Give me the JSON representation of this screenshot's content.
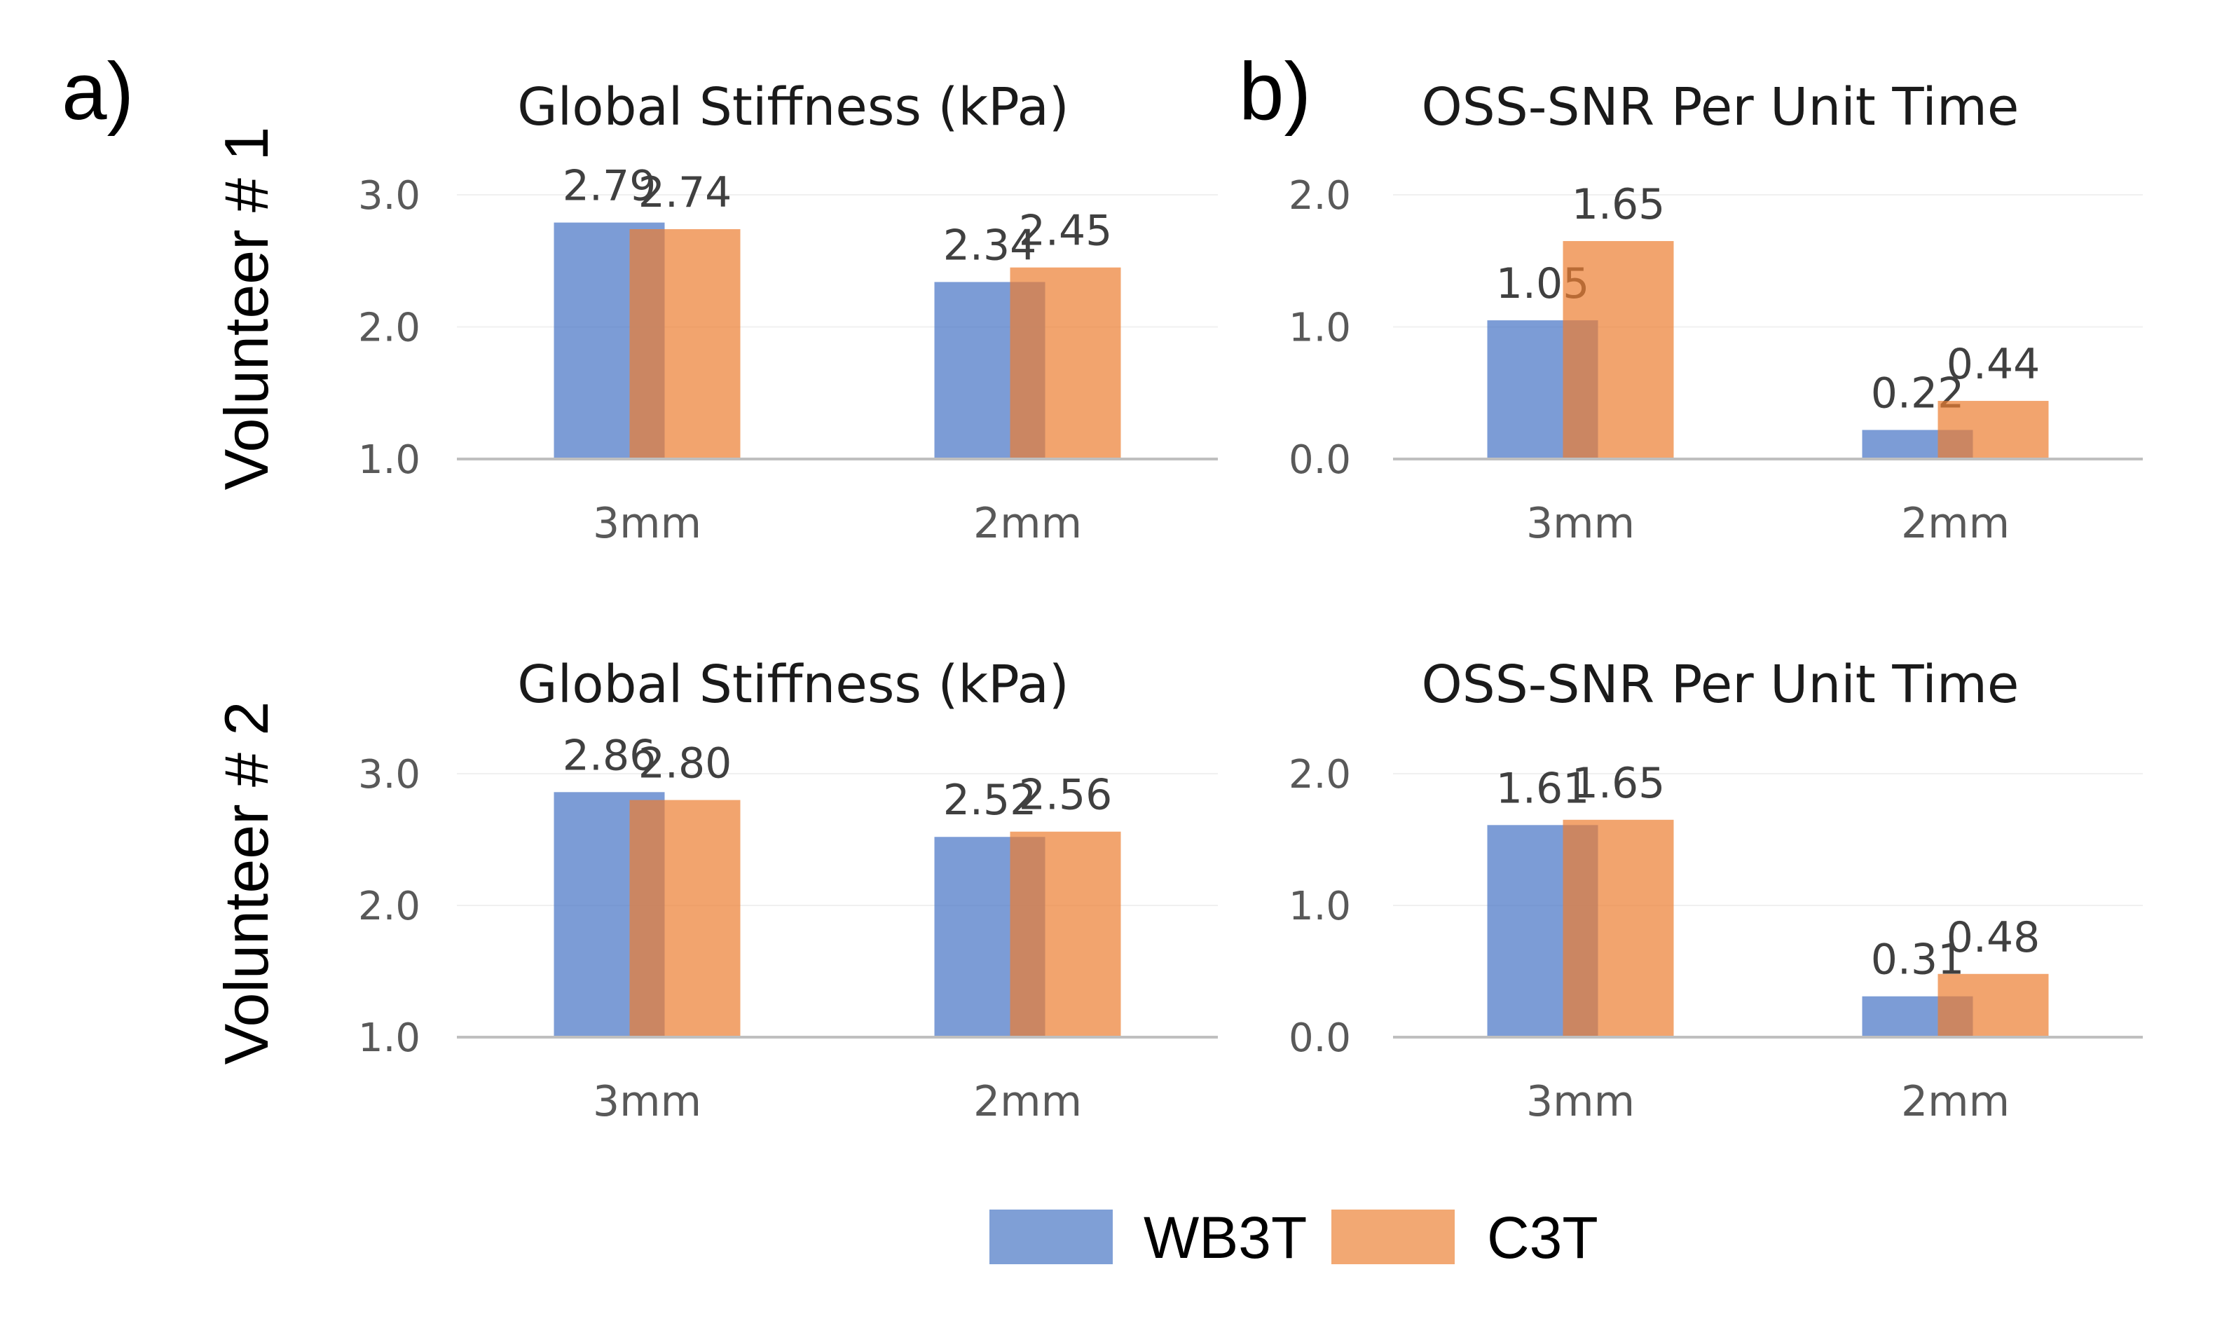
{
  "panel_labels": {
    "a": "a)",
    "b": "b)"
  },
  "row_labels": [
    "Volunteer # 1",
    "Volunteer # 2"
  ],
  "colors": {
    "WB3T": "#4472C4",
    "C3T": "#ED7D31",
    "axis": "#BFBFBF",
    "grid": "#F0F0F0"
  },
  "legend": [
    {
      "name": "WB3T",
      "color": "#4472C4"
    },
    {
      "name": "C3T",
      "color": "#ED7D31"
    }
  ],
  "chart_data": [
    {
      "type": "bar",
      "title": "Global Stiffness (kPa)",
      "categories": [
        "3mm",
        "2mm"
      ],
      "series": [
        {
          "name": "WB3T",
          "values": [
            2.79,
            2.34
          ],
          "labels": [
            "2.79",
            "2.34"
          ]
        },
        {
          "name": "C3T",
          "values": [
            2.74,
            2.45
          ],
          "labels": [
            "2.74",
            "2.45"
          ]
        }
      ],
      "ylim": [
        1.0,
        3.0
      ],
      "yticks": [
        1.0,
        2.0,
        3.0
      ],
      "ytick_labels": [
        "1.0",
        "2.0",
        "3.0"
      ],
      "xlabel": "",
      "ylabel": "",
      "grid": true
    },
    {
      "type": "bar",
      "title": "OSS-SNR Per Unit Time",
      "categories": [
        "3mm",
        "2mm"
      ],
      "series": [
        {
          "name": "WB3T",
          "values": [
            1.05,
            0.22
          ],
          "labels": [
            "1.05",
            "0.22"
          ]
        },
        {
          "name": "C3T",
          "values": [
            1.65,
            0.44
          ],
          "labels": [
            "1.65",
            "0.44"
          ]
        }
      ],
      "ylim": [
        0.0,
        2.0
      ],
      "yticks": [
        0.0,
        1.0,
        2.0
      ],
      "ytick_labels": [
        "0.0",
        "1.0",
        "2.0"
      ],
      "xlabel": "",
      "ylabel": "",
      "grid": true
    },
    {
      "type": "bar",
      "title": "Global Stiffness (kPa)",
      "categories": [
        "3mm",
        "2mm"
      ],
      "series": [
        {
          "name": "WB3T",
          "values": [
            2.86,
            2.52
          ],
          "labels": [
            "2.86",
            "2.52"
          ]
        },
        {
          "name": "C3T",
          "values": [
            2.8,
            2.56
          ],
          "labels": [
            "2.80",
            "2.56"
          ]
        }
      ],
      "ylim": [
        1.0,
        3.0
      ],
      "yticks": [
        1.0,
        2.0,
        3.0
      ],
      "ytick_labels": [
        "1.0",
        "2.0",
        "3.0"
      ],
      "xlabel": "",
      "ylabel": "",
      "grid": true
    },
    {
      "type": "bar",
      "title": "OSS-SNR Per Unit Time",
      "categories": [
        "3mm",
        "2mm"
      ],
      "series": [
        {
          "name": "WB3T",
          "values": [
            1.61,
            0.31
          ],
          "labels": [
            "1.61",
            "0.31"
          ]
        },
        {
          "name": "C3T",
          "values": [
            1.65,
            0.48
          ],
          "labels": [
            "1.65",
            "0.48"
          ]
        }
      ],
      "ylim": [
        0.0,
        2.0
      ],
      "yticks": [
        0.0,
        1.0,
        2.0
      ],
      "ytick_labels": [
        "0.0",
        "1.0",
        "2.0"
      ],
      "xlabel": "",
      "ylabel": "",
      "grid": true
    }
  ]
}
